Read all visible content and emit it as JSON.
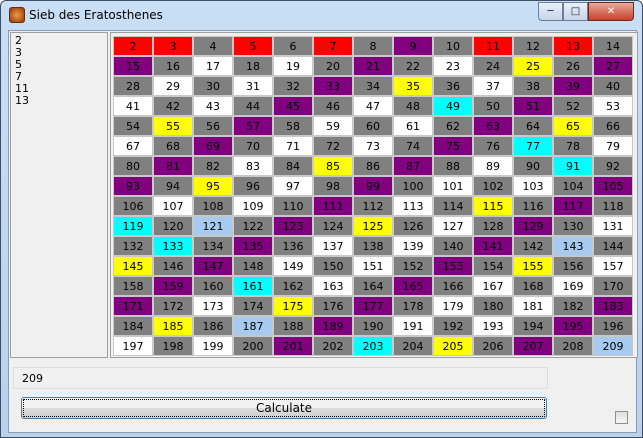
{
  "window": {
    "title": "Sieb des Eratosthenes",
    "minimize": "─",
    "maximize": "□",
    "close": "✕"
  },
  "primes_list": [
    "2",
    "3",
    "5",
    "7",
    "11",
    "13"
  ],
  "color_key": {
    "R": "#ff0000",
    "G": "#808080",
    "P": "#800080",
    "Y": "#ffff00",
    "C": "#00ffff",
    "B": "#a6caf0",
    "W": "#ffffff"
  },
  "grid": [
    {
      "numbers": [
        2,
        3,
        4,
        5,
        6,
        7,
        8,
        9,
        10,
        11,
        12,
        13,
        14
      ],
      "colors": "RRGRGRGPGRGRG"
    },
    {
      "numbers": [
        15,
        16,
        17,
        18,
        19,
        20,
        21,
        22,
        23,
        24,
        25,
        26,
        27
      ],
      "colors": "PGWGWGPGWGYGP"
    },
    {
      "numbers": [
        28,
        29,
        30,
        31,
        32,
        33,
        34,
        35,
        36,
        37,
        38,
        39,
        40
      ],
      "colors": "GWGWGPGYGWGPG"
    },
    {
      "numbers": [
        41,
        42,
        43,
        44,
        45,
        46,
        47,
        48,
        49,
        50,
        51,
        52,
        53
      ],
      "colors": "WGWGPGWGCGPGW"
    },
    {
      "numbers": [
        54,
        55,
        56,
        57,
        58,
        59,
        60,
        61,
        62,
        63,
        64,
        65,
        66
      ],
      "colors": "GYGPGWGWGPGYG"
    },
    {
      "numbers": [
        67,
        68,
        69,
        70,
        71,
        72,
        73,
        74,
        75,
        76,
        77,
        78,
        79
      ],
      "colors": "WGPGWGWGPGCGW"
    },
    {
      "numbers": [
        80,
        81,
        82,
        83,
        84,
        85,
        86,
        87,
        88,
        89,
        90,
        91,
        92
      ],
      "colors": "GPGWGYGPGWGCG"
    },
    {
      "numbers": [
        93,
        94,
        95,
        96,
        97,
        98,
        99,
        100,
        101,
        102,
        103,
        104,
        105
      ],
      "colors": "PGYGWGPGWGWGP"
    },
    {
      "numbers": [
        106,
        107,
        108,
        109,
        110,
        111,
        112,
        113,
        114,
        115,
        116,
        117,
        118
      ],
      "colors": "GWGWGPGWGYGPG"
    },
    {
      "numbers": [
        119,
        120,
        121,
        122,
        123,
        124,
        125,
        126,
        127,
        128,
        129,
        130,
        131
      ],
      "colors": "CGBGPGYGWGPGW"
    },
    {
      "numbers": [
        132,
        133,
        134,
        135,
        136,
        137,
        138,
        139,
        140,
        141,
        142,
        143,
        144
      ],
      "colors": "GCGPGWGWGPGBG"
    },
    {
      "numbers": [
        145,
        146,
        147,
        148,
        149,
        150,
        151,
        152,
        153,
        154,
        155,
        156,
        157
      ],
      "colors": "YGPGWGWGPGYGW"
    },
    {
      "numbers": [
        158,
        159,
        160,
        161,
        162,
        163,
        164,
        165,
        166,
        167,
        168,
        169,
        170
      ],
      "colors": "GPGCGWGPGWGWG"
    },
    {
      "numbers": [
        171,
        172,
        173,
        174,
        175,
        176,
        177,
        178,
        179,
        180,
        181,
        182,
        183
      ],
      "colors": "PGWGYGPGWGWGP"
    },
    {
      "numbers": [
        184,
        185,
        186,
        187,
        188,
        189,
        190,
        191,
        192,
        193,
        194,
        195,
        196
      ],
      "colors": "GYGBGPGWGWGPG"
    },
    {
      "numbers": [
        197,
        198,
        199,
        200,
        201,
        202,
        203,
        204,
        205,
        206,
        207,
        208,
        209
      ],
      "colors": "WGWGPGCGYGPGB"
    }
  ],
  "input": {
    "value": "209"
  },
  "calculate_label": "Calculate",
  "checkbox_checked": false
}
